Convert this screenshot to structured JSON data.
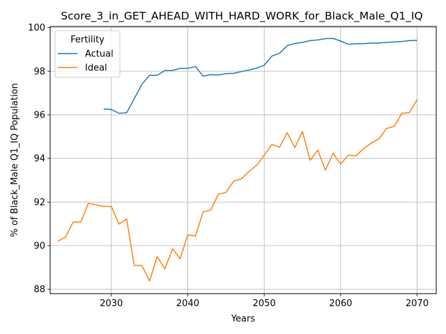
{
  "chart_data": {
    "type": "line",
    "title": "Score_3_in_GET_AHEAD_WITH_HARD_WORK_for_Black_Male_Q1_IQ",
    "xlabel": "Years",
    "ylabel": "% of Black_Male Q1_IQ Population",
    "xlim": [
      2022,
      2072.5
    ],
    "ylim": [
      87.8,
      100.05
    ],
    "xticks": [
      2030,
      2040,
      2050,
      2060,
      2070
    ],
    "yticks": [
      88,
      90,
      92,
      94,
      96,
      98,
      100
    ],
    "grid": true,
    "legend": {
      "title": "Fertility",
      "placement": "upper-left"
    },
    "series": [
      {
        "name": "Actual",
        "color": "#1f77b4",
        "x": [
          2029,
          2030,
          2031,
          2032,
          2033,
          2034,
          2035,
          2036,
          2037,
          2038,
          2039,
          2040,
          2041,
          2042,
          2043,
          2044,
          2045,
          2046,
          2047,
          2048,
          2049,
          2050,
          2051,
          2052,
          2053,
          2054,
          2055,
          2056,
          2057,
          2058,
          2059,
          2060,
          2061,
          2062,
          2063,
          2064,
          2065,
          2066,
          2067,
          2068,
          2069,
          2070
        ],
        "y": [
          96.27,
          96.24,
          96.07,
          96.09,
          96.74,
          97.4,
          97.81,
          97.81,
          98.03,
          98.03,
          98.13,
          98.13,
          98.21,
          97.77,
          97.84,
          97.82,
          97.89,
          97.9,
          97.98,
          98.05,
          98.14,
          98.27,
          98.69,
          98.82,
          99.17,
          99.27,
          99.32,
          99.4,
          99.43,
          99.49,
          99.5,
          99.38,
          99.23,
          99.26,
          99.26,
          99.29,
          99.29,
          99.32,
          99.34,
          99.36,
          99.4,
          99.41
        ]
      },
      {
        "name": "Ideal",
        "color": "#ff7f0e",
        "x": [
          2023,
          2024,
          2025,
          2026,
          2027,
          2028,
          2029,
          2030,
          2031,
          2032,
          2033,
          2034,
          2035,
          2036,
          2037,
          2038,
          2039,
          2040,
          2041,
          2042,
          2043,
          2044,
          2045,
          2046,
          2047,
          2048,
          2049,
          2050,
          2051,
          2052,
          2053,
          2054,
          2055,
          2056,
          2057,
          2058,
          2059,
          2060,
          2061,
          2062,
          2063,
          2064,
          2065,
          2066,
          2067,
          2068,
          2069,
          2070
        ],
        "y": [
          90.2,
          90.39,
          91.08,
          91.08,
          91.94,
          91.87,
          91.8,
          91.8,
          90.99,
          91.22,
          89.09,
          89.09,
          88.38,
          89.5,
          88.93,
          89.86,
          89.4,
          90.5,
          90.44,
          91.55,
          91.63,
          92.36,
          92.44,
          92.96,
          93.06,
          93.4,
          93.68,
          94.15,
          94.64,
          94.51,
          95.18,
          94.49,
          95.24,
          93.91,
          94.38,
          93.46,
          94.24,
          93.74,
          94.15,
          94.12,
          94.45,
          94.7,
          94.9,
          95.37,
          95.47,
          96.07,
          96.1,
          96.7
        ]
      }
    ]
  }
}
